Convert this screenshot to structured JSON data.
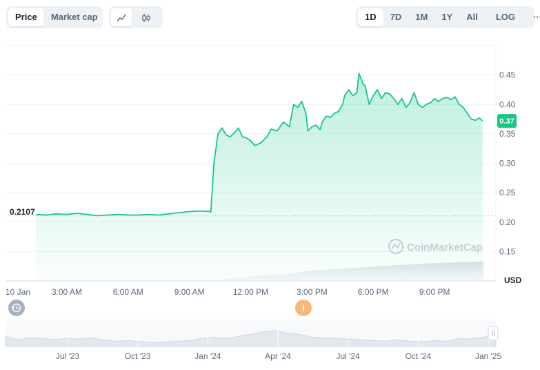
{
  "toggle": {
    "price": "Price",
    "market_cap": "Market cap"
  },
  "view_icons": {
    "line": "line-chart-icon",
    "candle": "candlestick-icon"
  },
  "ranges": [
    "1D",
    "7D",
    "1M",
    "1Y",
    "All"
  ],
  "active_range": "1D",
  "log_label": "LOG",
  "more_label": "···",
  "current_price_badge": "0.37",
  "open_price_label": "0.2107",
  "watermark": "CoinMarketCap",
  "colors": {
    "up": "#16c784",
    "badge_bg": "#16c784",
    "grid": "#eff2f5",
    "axis_text": "#58667e"
  },
  "chart_data": {
    "type": "area",
    "ylabel": "USD",
    "ylim": [
      0.1,
      0.5
    ],
    "y_ticks": [
      "0.45",
      "0.40",
      "0.35",
      "0.30",
      "0.25",
      "0.20",
      "0.15"
    ],
    "y_tick_values": [
      0.45,
      0.4,
      0.35,
      0.3,
      0.25,
      0.2,
      0.15
    ],
    "x_ticks": [
      "10 Jan",
      "3:00 AM",
      "6:00 AM",
      "9:00 AM",
      "12:00 PM",
      "3:00 PM",
      "6:00 PM",
      "9:00 PM"
    ],
    "x_tick_hours": [
      0,
      3,
      6,
      9,
      12,
      15,
      18,
      21
    ],
    "x_range_hours": [
      0,
      24
    ],
    "baseline": 0.2107,
    "price": {
      "hours": [
        1.5,
        2.0,
        2.5,
        3.0,
        3.5,
        4.0,
        4.5,
        5.0,
        5.5,
        6.0,
        6.5,
        7.0,
        7.5,
        8.0,
        8.5,
        9.0,
        9.5,
        10.0,
        10.05,
        10.2,
        10.4,
        10.6,
        10.8,
        11.0,
        11.2,
        11.4,
        11.6,
        11.8,
        12.0,
        12.2,
        12.5,
        12.8,
        13.0,
        13.3,
        13.6,
        13.9,
        14.1,
        14.3,
        14.5,
        14.7,
        14.8,
        15.0,
        15.2,
        15.4,
        15.5,
        15.7,
        15.9,
        16.1,
        16.3,
        16.5,
        16.6,
        16.8,
        17.0,
        17.2,
        17.3,
        17.5,
        17.6,
        17.8,
        18.0,
        18.2,
        18.4,
        18.6,
        18.8,
        19.0,
        19.2,
        19.4,
        19.6,
        19.8,
        20.0,
        20.2,
        20.4,
        20.6,
        20.8,
        21.0,
        21.2,
        21.4,
        21.6,
        21.8,
        22.0,
        22.2,
        22.4,
        22.6,
        22.8,
        23.0,
        23.2,
        23.35
      ],
      "values": [
        0.213,
        0.212,
        0.214,
        0.213,
        0.215,
        0.213,
        0.211,
        0.212,
        0.213,
        0.212,
        0.212,
        0.213,
        0.212,
        0.214,
        0.216,
        0.218,
        0.219,
        0.218,
        0.217,
        0.3,
        0.35,
        0.36,
        0.348,
        0.345,
        0.352,
        0.36,
        0.345,
        0.343,
        0.338,
        0.33,
        0.335,
        0.345,
        0.358,
        0.355,
        0.37,
        0.362,
        0.4,
        0.395,
        0.405,
        0.385,
        0.355,
        0.362,
        0.365,
        0.357,
        0.37,
        0.38,
        0.378,
        0.385,
        0.388,
        0.4,
        0.415,
        0.425,
        0.415,
        0.42,
        0.453,
        0.435,
        0.432,
        0.4,
        0.415,
        0.425,
        0.41,
        0.42,
        0.418,
        0.41,
        0.4,
        0.41,
        0.395,
        0.403,
        0.42,
        0.4,
        0.395,
        0.4,
        0.403,
        0.41,
        0.405,
        0.41,
        0.412,
        0.408,
        0.413,
        0.4,
        0.395,
        0.385,
        0.375,
        0.373,
        0.377,
        0.372
      ]
    },
    "volume": {
      "hours": [
        10.0,
        11,
        12,
        13,
        14,
        14.5,
        15,
        16,
        17,
        18,
        19,
        20,
        21,
        22,
        23,
        23.4
      ],
      "values_relative": [
        0.0,
        0.12,
        0.2,
        0.25,
        0.3,
        0.4,
        0.46,
        0.5,
        0.56,
        0.62,
        0.67,
        0.72,
        0.76,
        0.8,
        0.82,
        0.83
      ]
    },
    "navigator": {
      "x_ticks": [
        "Jul '23",
        "Oct '23",
        "Jan '24",
        "Apr '24",
        "Jul '24",
        "Oct '24",
        "Jan '25"
      ],
      "series_relative": [
        0.4,
        0.25,
        0.32,
        0.3,
        0.26,
        0.3,
        0.28,
        0.32,
        0.25,
        0.2,
        0.22,
        0.18,
        0.15,
        0.17,
        0.2,
        0.22,
        0.3,
        0.35,
        0.3,
        0.38,
        0.45,
        0.55,
        0.6,
        0.5,
        0.45,
        0.35,
        0.32,
        0.3,
        0.28,
        0.25,
        0.22,
        0.2,
        0.25,
        0.2,
        0.18,
        0.22,
        0.2,
        0.3,
        0.28,
        0.35,
        0.42
      ]
    }
  }
}
